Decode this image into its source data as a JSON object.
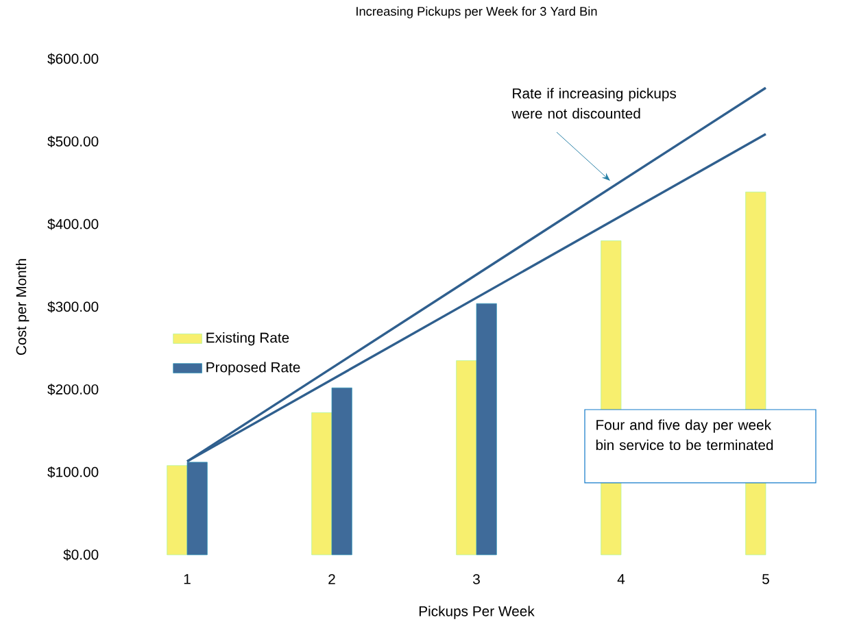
{
  "chart_data": {
    "type": "bar",
    "title": "Increasing Pickups per Week for 3 Yard Bin",
    "xlabel": "Pickups Per Week",
    "ylabel": "Cost per Month",
    "categories": [
      "1",
      "2",
      "3",
      "4",
      "5"
    ],
    "series": [
      {
        "name": "Existing Rate",
        "color": "#f7ef6e",
        "values": [
          108,
          172,
          235,
          380,
          439
        ]
      },
      {
        "name": "Proposed Rate",
        "color": "#3f6b9a",
        "values": [
          112,
          202,
          304,
          null,
          null
        ]
      },
      {
        "type": "line",
        "color": "#2f5f8e",
        "x": [
          "1",
          "5"
        ],
        "values": [
          113,
          565
        ]
      },
      {
        "type": "line",
        "color": "#2f5f8e",
        "x": [
          "1",
          "5"
        ],
        "values": [
          113,
          509
        ]
      }
    ],
    "ylim": [
      0,
      600
    ],
    "yticks": [
      {
        "value": 0,
        "label": "$0.00"
      },
      {
        "value": 100,
        "label": "$100.00"
      },
      {
        "value": 200,
        "label": "$200.00"
      },
      {
        "value": 300,
        "label": "$300.00"
      },
      {
        "value": 400,
        "label": "$400.00"
      },
      {
        "value": 500,
        "label": "$500.00"
      },
      {
        "value": 600,
        "label": "$600.00"
      }
    ],
    "legend": "left",
    "annotations": [
      "Rate if increasing pickups were not discounted",
      "Four and five day per week bin service to be terminated"
    ]
  }
}
